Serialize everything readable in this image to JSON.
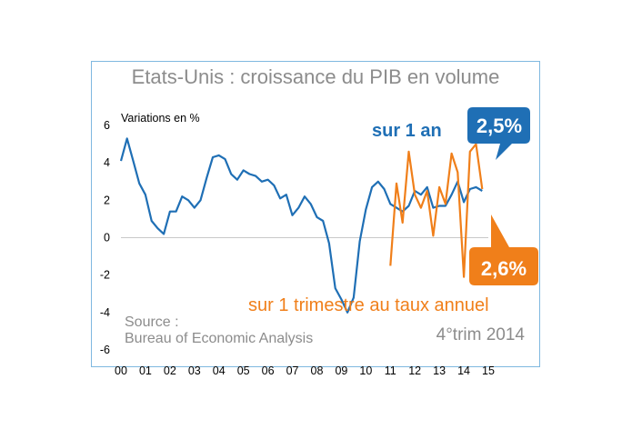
{
  "chart_data": {
    "type": "line",
    "title": "Etats-Unis : croissance du PIB en volume",
    "ylabel": "Variations en %",
    "ylim": [
      -6,
      6
    ],
    "yticks": [
      "6",
      "4",
      "2",
      "0",
      "-2",
      "-4",
      "-6"
    ],
    "xlim": [
      0,
      15
    ],
    "xticks": [
      "00",
      "01",
      "02",
      "03",
      "04",
      "05",
      "06",
      "07",
      "08",
      "09",
      "10",
      "11",
      "12",
      "13",
      "14",
      "15"
    ],
    "source_title": "Source :",
    "source_text": "Bureau of Economic Analysis",
    "period": "4°trim 2014",
    "series": [
      {
        "name": "sur 1 an",
        "color": "#1f6fb5",
        "callout": "2,5%",
        "points": [
          [
            0.0,
            4.1
          ],
          [
            0.25,
            5.3
          ],
          [
            0.5,
            4.1
          ],
          [
            0.75,
            2.9
          ],
          [
            1.0,
            2.3
          ],
          [
            1.25,
            0.9
          ],
          [
            1.5,
            0.5
          ],
          [
            1.75,
            0.2
          ],
          [
            2.0,
            1.4
          ],
          [
            2.25,
            1.4
          ],
          [
            2.5,
            2.2
          ],
          [
            2.75,
            2.0
          ],
          [
            3.0,
            1.6
          ],
          [
            3.25,
            2.0
          ],
          [
            3.5,
            3.2
          ],
          [
            3.75,
            4.3
          ],
          [
            4.0,
            4.4
          ],
          [
            4.25,
            4.2
          ],
          [
            4.5,
            3.4
          ],
          [
            4.75,
            3.1
          ],
          [
            5.0,
            3.6
          ],
          [
            5.25,
            3.4
          ],
          [
            5.5,
            3.3
          ],
          [
            5.75,
            3.0
          ],
          [
            6.0,
            3.1
          ],
          [
            6.25,
            2.8
          ],
          [
            6.5,
            2.1
          ],
          [
            6.75,
            2.3
          ],
          [
            7.0,
            1.2
          ],
          [
            7.25,
            1.6
          ],
          [
            7.5,
            2.2
          ],
          [
            7.75,
            1.8
          ],
          [
            8.0,
            1.1
          ],
          [
            8.25,
            0.9
          ],
          [
            8.5,
            -0.3
          ],
          [
            8.75,
            -2.7
          ],
          [
            9.0,
            -3.3
          ],
          [
            9.25,
            -4.0
          ],
          [
            9.5,
            -3.2
          ],
          [
            9.75,
            -0.2
          ],
          [
            10.0,
            1.5
          ],
          [
            10.25,
            2.7
          ],
          [
            10.5,
            3.0
          ],
          [
            10.75,
            2.6
          ],
          [
            11.0,
            1.8
          ],
          [
            11.25,
            1.6
          ],
          [
            11.5,
            1.4
          ],
          [
            11.75,
            1.7
          ],
          [
            12.0,
            2.5
          ],
          [
            12.25,
            2.3
          ],
          [
            12.5,
            2.7
          ],
          [
            12.75,
            1.6
          ],
          [
            13.0,
            1.7
          ],
          [
            13.25,
            1.7
          ],
          [
            13.5,
            2.3
          ],
          [
            13.75,
            3.0
          ],
          [
            14.0,
            1.9
          ],
          [
            14.25,
            2.6
          ],
          [
            14.5,
            2.7
          ],
          [
            14.75,
            2.5
          ]
        ]
      },
      {
        "name": "sur 1 trimestre au taux annuel",
        "color": "#f07f1a",
        "callout": "2,6%",
        "points": [
          [
            11.0,
            -1.5
          ],
          [
            11.25,
            2.9
          ],
          [
            11.5,
            0.8
          ],
          [
            11.75,
            4.6
          ],
          [
            12.0,
            2.3
          ],
          [
            12.25,
            1.6
          ],
          [
            12.5,
            2.5
          ],
          [
            12.75,
            0.1
          ],
          [
            13.0,
            2.7
          ],
          [
            13.25,
            1.8
          ],
          [
            13.5,
            4.5
          ],
          [
            13.75,
            3.5
          ],
          [
            14.0,
            -2.1
          ],
          [
            14.25,
            4.6
          ],
          [
            14.5,
            5.0
          ],
          [
            14.75,
            2.6
          ]
        ]
      }
    ]
  }
}
